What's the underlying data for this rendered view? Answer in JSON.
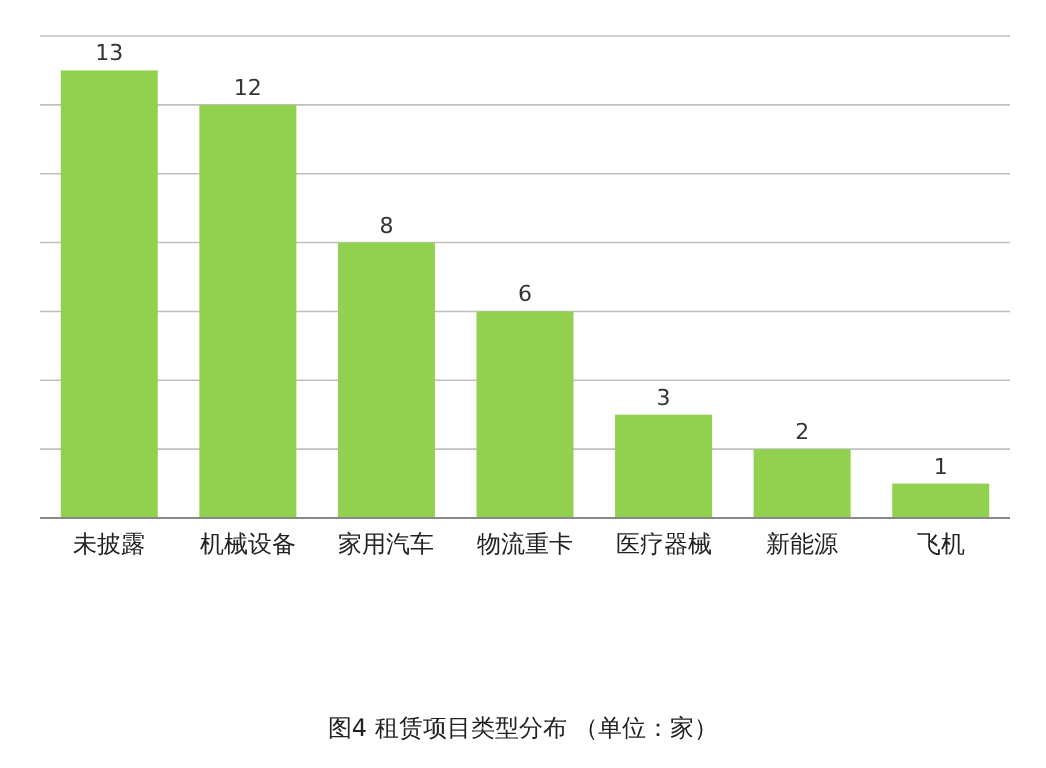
{
  "chart_data": {
    "type": "bar",
    "categories": [
      "未披露",
      "机械设备",
      "家用汽车",
      "物流重卡",
      "医疗器械",
      "新能源",
      "飞机"
    ],
    "values": [
      13,
      12,
      8,
      6,
      3,
      2,
      1
    ],
    "color": "#92d050",
    "data_labels": true,
    "grid": "y",
    "tick_labels": "x",
    "ylim": [
      0,
      14
    ],
    "yticks": [
      {
        "value": 0,
        "label": null
      },
      {
        "value": 2,
        "label": null
      },
      {
        "value": 4,
        "label": null
      },
      {
        "value": 6,
        "label": null
      },
      {
        "value": 8,
        "label": null
      },
      {
        "value": 10,
        "label": null
      },
      {
        "value": 12,
        "label": null
      },
      {
        "value": 14,
        "label": null
      }
    ],
    "annotations": [
      "图4 租赁项目类型分布 （单位：家）"
    ]
  }
}
